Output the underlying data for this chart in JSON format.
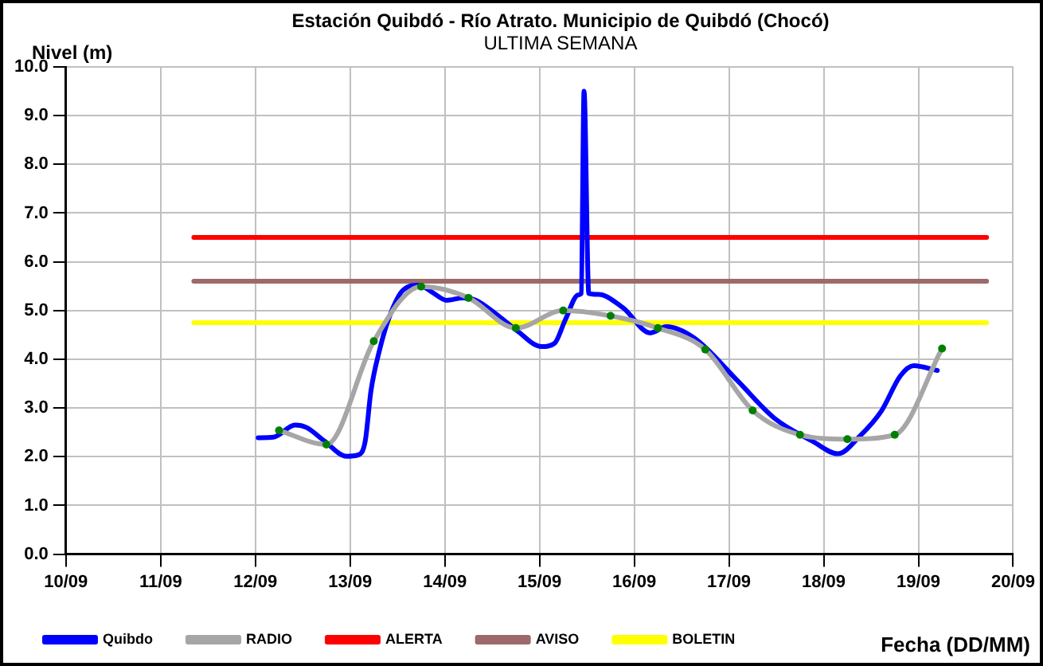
{
  "chart_data": {
    "type": "line",
    "title": "Estación Quibdó - Río Atrato. Municipio de Quibdó (Chocó)",
    "subtitle": "ULTIMA SEMANA",
    "xlabel": "Fecha (DD/MM)",
    "ylabel": "Nivel (m)",
    "xlim": [
      "--09-10",
      "--09-20"
    ],
    "xticks": [
      {
        "value": "--09-10",
        "label": "10/09"
      },
      {
        "value": "--09-11",
        "label": "11/09"
      },
      {
        "value": "--09-12",
        "label": "12/09"
      },
      {
        "value": "--09-13",
        "label": "13/09"
      },
      {
        "value": "--09-14",
        "label": "14/09"
      },
      {
        "value": "--09-15",
        "label": "15/09"
      },
      {
        "value": "--09-16",
        "label": "16/09"
      },
      {
        "value": "--09-17",
        "label": "17/09"
      },
      {
        "value": "--09-18",
        "label": "18/09"
      },
      {
        "value": "--09-19",
        "label": "19/09"
      },
      {
        "value": "--09-20",
        "label": "20/09"
      }
    ],
    "ylim": [
      0,
      10
    ],
    "yticks": [
      {
        "value": 0,
        "label": "0.0"
      },
      {
        "value": 1,
        "label": "1.0"
      },
      {
        "value": 2,
        "label": "2.0"
      },
      {
        "value": 3,
        "label": "3.0"
      },
      {
        "value": 4,
        "label": "4.0"
      },
      {
        "value": 5,
        "label": "5.0"
      },
      {
        "value": 6,
        "label": "6.0"
      },
      {
        "value": 7,
        "label": "7.0"
      },
      {
        "value": 8,
        "label": "8.0"
      },
      {
        "value": 9,
        "label": "9.0"
      },
      {
        "value": 10,
        "label": "10.0"
      }
    ],
    "grid": true,
    "legend": "bottom",
    "line_style": "solid",
    "series": [
      {
        "name": "Quibdo",
        "color": "#0000ff",
        "marker": "none",
        "x": [
          "--09-12T00:43",
          "--09-12T04:34",
          "--09-12T10:05",
          "--09-12T12:58",
          "--09-12T17:31",
          "--09-12T23:02",
          "--09-13T02:10",
          "--09-13T03:50",
          "--09-13T05:17",
          "--09-13T07:26",
          "--09-13T10:05",
          "--09-13T13:26",
          "--09-13T17:31",
          "--09-13T20:53",
          "--09-14T00:29",
          "--09-14T04:34",
          "--09-14T07:55",
          "--09-14T13:26",
          "--09-14T18:14",
          "--09-15T00:29",
          "--09-15T03:50",
          "--09-15T06:29",
          "--09-15T09:50",
          "--09-15T10:34",
          "--09-15T11:17",
          "--09-15T12:29",
          "--09-15T14:53",
          "--09-15T21:07",
          "--09-16T04:05",
          "--09-16T08:10",
          "--09-16T15:07",
          "--09-17T02:10",
          "--09-17T11:31",
          "--09-17T21:07",
          "--09-18T03:36",
          "--09-18T09:07",
          "--09-18T14:38",
          "--09-18T19:26",
          "--09-18T22:48",
          "--09-19T04:48"
        ],
        "values": [
          2.39,
          2.4,
          2.65,
          2.6,
          2.32,
          2.01,
          2.04,
          2.32,
          3.35,
          4.18,
          4.9,
          5.42,
          5.52,
          5.37,
          5.21,
          5.26,
          5.21,
          4.9,
          4.59,
          4.26,
          4.33,
          4.8,
          5.32,
          5.35,
          9.5,
          5.35,
          5.33,
          5.06,
          4.54,
          4.67,
          4.44,
          3.56,
          2.79,
          2.32,
          2.06,
          2.42,
          2.94,
          3.66,
          3.87,
          3.77
        ]
      },
      {
        "name": "RADIO",
        "color": "#a6a6a6",
        "marker": "circle",
        "colors": [
          "#008000",
          "#008000",
          "#008000",
          "#008000",
          "#008000",
          "#008000",
          "#008000",
          "#008000",
          "#008000",
          "#008000",
          "#008000",
          "#008000",
          "#008000",
          "#008000",
          "#008000"
        ],
        "x": [
          "--09-12T06:00",
          "--09-12T18:00",
          "--09-13T06:00",
          "--09-13T18:00",
          "--09-14T06:00",
          "--09-14T18:00",
          "--09-15T06:00",
          "--09-15T18:00",
          "--09-16T06:00",
          "--09-16T18:00",
          "--09-17T06:00",
          "--09-17T18:00",
          "--09-18T06:00",
          "--09-18T18:00",
          "--09-19T06:00"
        ],
        "values": [
          2.54,
          2.25,
          4.37,
          5.49,
          5.26,
          4.64,
          5.0,
          4.89,
          4.64,
          4.2,
          2.95,
          2.45,
          2.36,
          2.45,
          4.22
        ]
      },
      {
        "name": "ALERTA",
        "color": "#ff0000",
        "marker": "none",
        "x": [
          "--09-11T08:24",
          "--09-19T17:17"
        ],
        "values": [
          6.5,
          6.5
        ]
      },
      {
        "name": "AVISO",
        "color": "#9c6a6a",
        "marker": "none",
        "x": [
          "--09-11T08:24",
          "--09-19T17:17"
        ],
        "values": [
          5.6,
          5.6
        ]
      },
      {
        "name": "BOLETIN",
        "color": "#ffff00",
        "marker": "none",
        "x": [
          "--09-11T08:24",
          "--09-19T17:17"
        ],
        "values": [
          4.75,
          4.75
        ]
      }
    ]
  }
}
